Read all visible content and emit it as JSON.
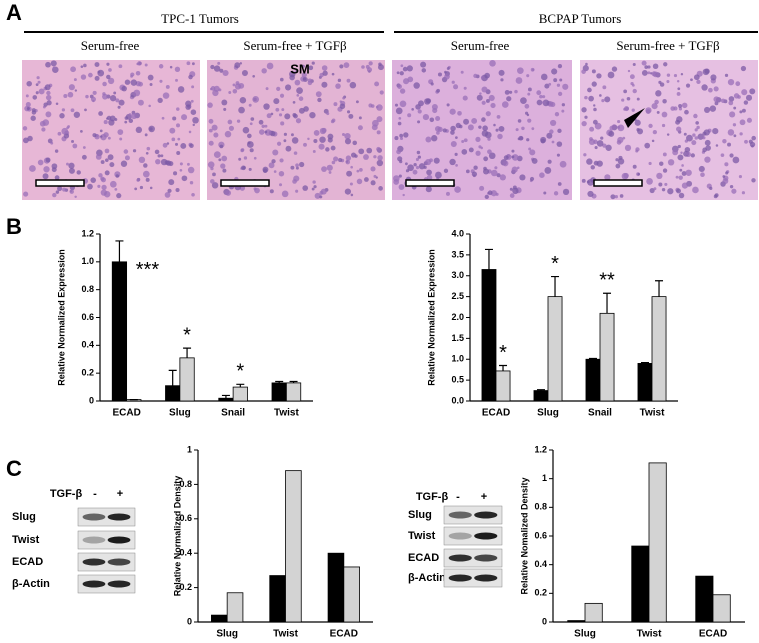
{
  "panels": {
    "a": "A",
    "b": "B",
    "c": "C"
  },
  "histology": {
    "groups": [
      "TPC-1 Tumors",
      "BCPAP Tumors"
    ],
    "captions": [
      "Serum-free",
      "Serum-free + TGFβ",
      "Serum-free",
      "Serum-free + TGFβ"
    ],
    "marker": "SM"
  },
  "blots": [
    {
      "treatment": "TGF-β",
      "minus": "-",
      "plus": "+",
      "rows": [
        "Slug",
        "Twist",
        "ECAD",
        "β-Actin"
      ]
    },
    {
      "treatment": "TGF-β",
      "minus": "-",
      "plus": "+",
      "rows": [
        "Slug",
        "Twist",
        "ECAD",
        "β-Actin"
      ]
    }
  ],
  "chart_data": [
    {
      "type": "bar",
      "ylabel": "Relative Normalized Expression",
      "categories": [
        "ECAD",
        "Slug",
        "Snail",
        "Twist"
      ],
      "series": [
        {
          "color": "#000000",
          "values": [
            1.0,
            0.11,
            0.02,
            0.13
          ],
          "errors": [
            0.15,
            0.11,
            0.02,
            0.01
          ]
        },
        {
          "color": "#d3d3d3",
          "values": [
            0.01,
            0.31,
            0.1,
            0.13
          ],
          "errors": [
            0,
            0.07,
            0.02,
            0.01
          ]
        }
      ],
      "ylim": [
        0,
        1.2
      ],
      "yticks": [
        0,
        0.2,
        0.4,
        0.6,
        0.8,
        {
          "value": 1.0,
          "label": "1.0"
        },
        1.2
      ],
      "annotations": [
        "***",
        "*",
        "*"
      ]
    },
    {
      "type": "bar",
      "ylabel": "Relative Normalized Expression",
      "categories": [
        "ECAD",
        "Slug",
        "Snail",
        "Twist"
      ],
      "series": [
        {
          "color": "#000000",
          "values": [
            3.15,
            0.25,
            1.0,
            0.9
          ],
          "errors": [
            0.48,
            0.02,
            0.02,
            0.02
          ]
        },
        {
          "color": "#d3d3d3",
          "values": [
            0.72,
            2.5,
            2.1,
            2.5
          ],
          "errors": [
            0.13,
            0.48,
            0.48,
            0.38
          ]
        }
      ],
      "ylim": [
        0,
        4.0
      ],
      "yticks": [
        {
          "value": 0,
          "label": "0.0"
        },
        0.5,
        {
          "value": 1,
          "label": "1.0"
        },
        1.5,
        {
          "value": 2,
          "label": "2.0"
        },
        2.5,
        {
          "value": 3,
          "label": "3.0"
        },
        3.5,
        {
          "value": 4,
          "label": "4.0"
        }
      ],
      "annotations": [
        "*",
        "*",
        "**"
      ]
    },
    {
      "type": "bar",
      "ylabel": "Relative Normalized Density",
      "categories": [
        "Slug",
        "Twist",
        "ECAD"
      ],
      "series": [
        {
          "color": "#000000",
          "values": [
            0.04,
            0.27,
            0.4
          ]
        },
        {
          "color": "#d3d3d3",
          "values": [
            0.17,
            0.88,
            0.32
          ]
        }
      ],
      "ylim": [
        0,
        1
      ],
      "yticks": [
        0,
        0.2,
        0.4,
        0.6,
        0.8,
        1
      ]
    },
    {
      "type": "bar",
      "ylabel": "Relative Nomalized Density",
      "categories": [
        "Slug",
        "Twist",
        "ECAD"
      ],
      "series": [
        {
          "color": "#000000",
          "values": [
            0.01,
            0.53,
            0.32
          ]
        },
        {
          "color": "#d3d3d3",
          "values": [
            0.13,
            1.11,
            0.19
          ]
        }
      ],
      "ylim": [
        0,
        1.2
      ],
      "yticks": [
        0,
        0.2,
        0.4,
        0.6,
        0.8,
        1,
        1.2
      ]
    }
  ]
}
